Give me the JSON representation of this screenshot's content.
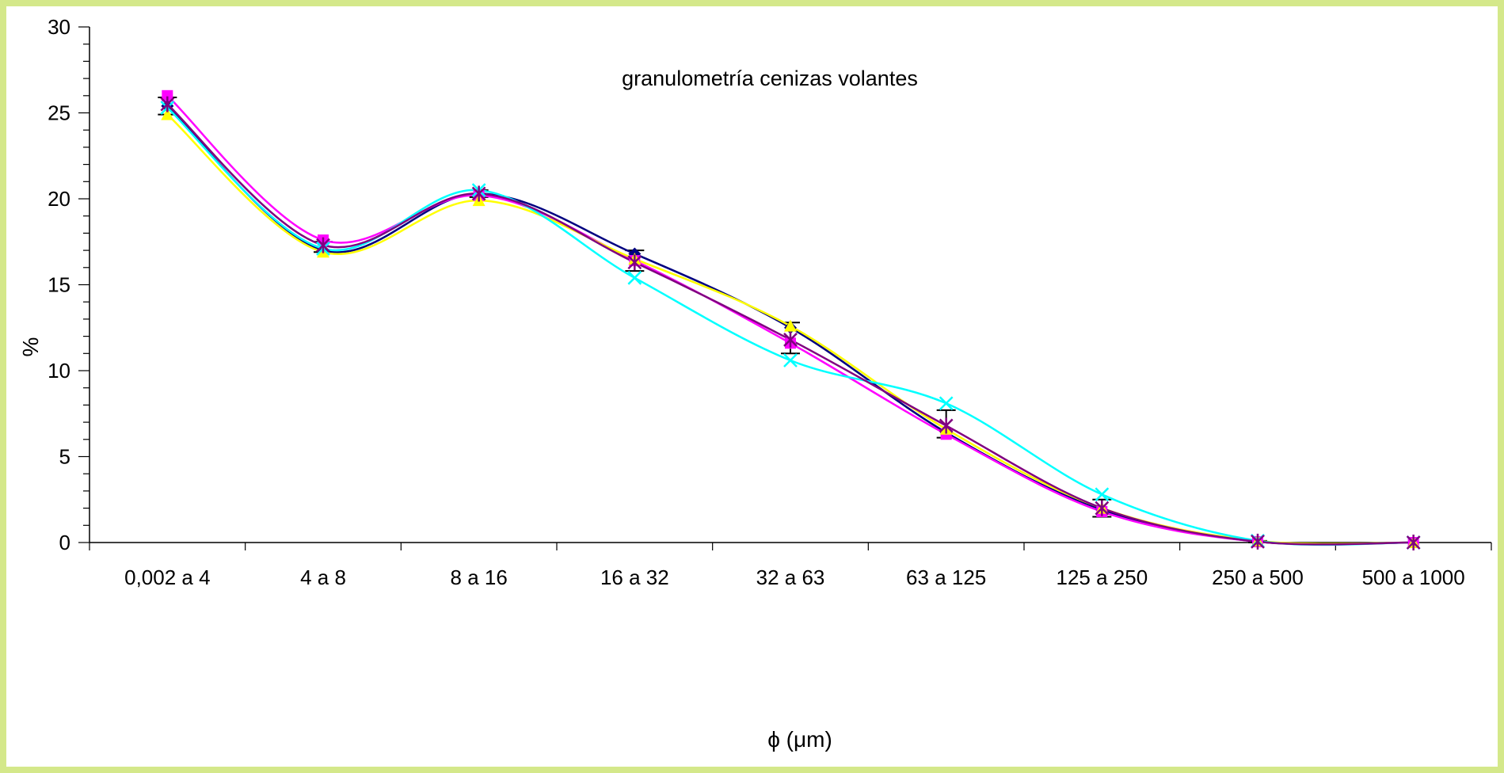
{
  "chart_data": {
    "type": "line",
    "title": "granulometría cenizas volantes",
    "xlabel": "ϕ (μm)",
    "xlabel_symbol": "ϕ",
    "xlabel_unit": "μm",
    "ylabel": "%",
    "ylim": [
      0,
      30
    ],
    "yticks": [
      "0",
      "5",
      "10",
      "15",
      "20",
      "25",
      "30"
    ],
    "grid": false,
    "categories": [
      "0,002 a 4",
      "4 a 8",
      "8 a 16",
      "16 a 32",
      "32 a 63",
      "63 a 125",
      "125 a 250",
      "250 a 500",
      "500 a 1000"
    ],
    "series": [
      {
        "color": "#000080",
        "marker": "diamond",
        "values": [
          25.4,
          17.0,
          20.3,
          16.8,
          12.5,
          6.4,
          1.9,
          0.05,
          0
        ]
      },
      {
        "color": "#ff00ff",
        "marker": "square",
        "values": [
          26.0,
          17.6,
          20.2,
          16.4,
          11.6,
          6.3,
          1.8,
          0.05,
          0
        ]
      },
      {
        "color": "#ffff00",
        "marker": "triangle",
        "values": [
          24.9,
          16.9,
          19.9,
          16.5,
          12.6,
          6.6,
          2.0,
          0.1,
          0
        ]
      },
      {
        "color": "#00ffff",
        "marker": "x",
        "values": [
          25.3,
          17.1,
          20.5,
          15.4,
          10.6,
          8.1,
          2.8,
          0.1,
          0
        ]
      },
      {
        "color": "#800080",
        "marker": "star",
        "values": [
          25.5,
          17.3,
          20.3,
          16.3,
          11.8,
          6.8,
          2.0,
          0.05,
          0
        ]
      }
    ],
    "error_bars": {
      "center": [
        25.4,
        17.2,
        20.3,
        16.4,
        11.9,
        6.9,
        2.0,
        0.05,
        0
      ],
      "half_width": [
        0.5,
        0.3,
        0.2,
        0.6,
        0.9,
        0.8,
        0.5,
        0.05,
        0
      ]
    }
  }
}
